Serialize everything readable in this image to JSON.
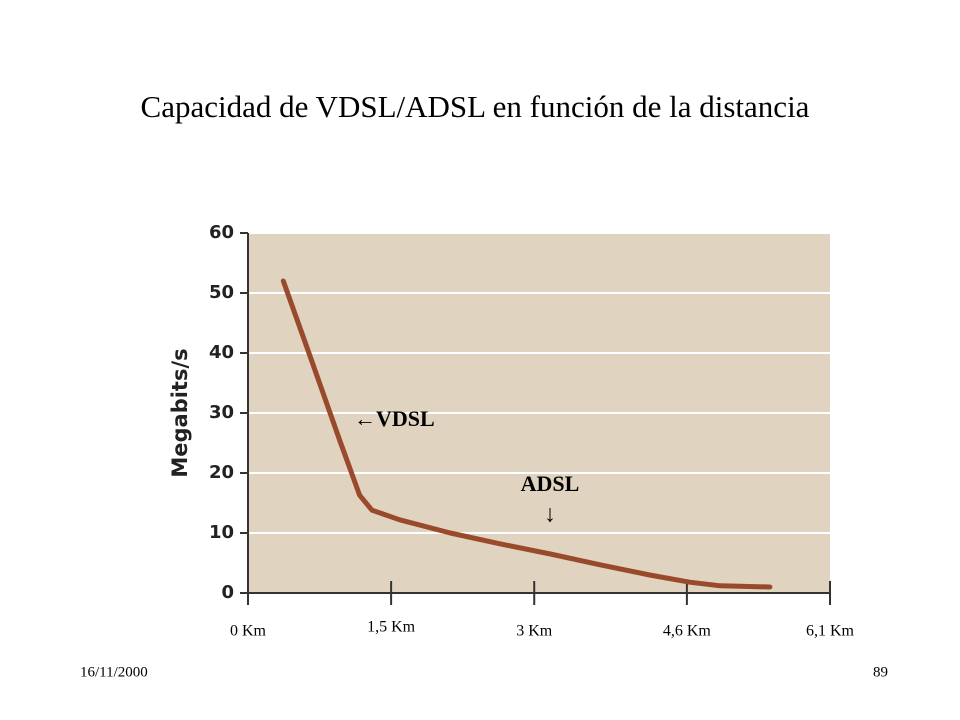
{
  "slide_title": "Capacidad de VDSL/ADSL en función de la distancia",
  "footer": {
    "date": "16/11/2000",
    "page": "89"
  },
  "chart_data": {
    "type": "line",
    "ylabel": "Megabits/s",
    "x": [
      0.37,
      0.65,
      0.96,
      1.17,
      1.3,
      1.59,
      2.12,
      2.64,
      3.17,
      3.69,
      4.21,
      4.63,
      4.95,
      5.47
    ],
    "values": [
      52,
      39.5,
      25.5,
      16.3,
      13.8,
      12.2,
      10,
      8.2,
      6.5,
      4.7,
      3,
      1.8,
      1.2,
      1
    ],
    "color": "#9a4a2c",
    "xlim": [
      0,
      6.1
    ],
    "ylim": [
      0,
      60
    ],
    "xticks": [
      {
        "value": 0,
        "label": "0 Km"
      },
      {
        "value": 1.5,
        "label": "1,5 Km"
      },
      {
        "value": 3,
        "label": "3 Km"
      },
      {
        "value": 4.6,
        "label": "4,6 Km"
      },
      {
        "value": 6.1,
        "label": "6,1 Km"
      }
    ],
    "yticks": [
      0,
      10,
      20,
      30,
      40,
      50,
      60
    ],
    "grid": true,
    "annotation_vdsl": "←VDSL",
    "annotation_adsl": "ADSL",
    "annotation_adsl_arrow": "↓"
  }
}
